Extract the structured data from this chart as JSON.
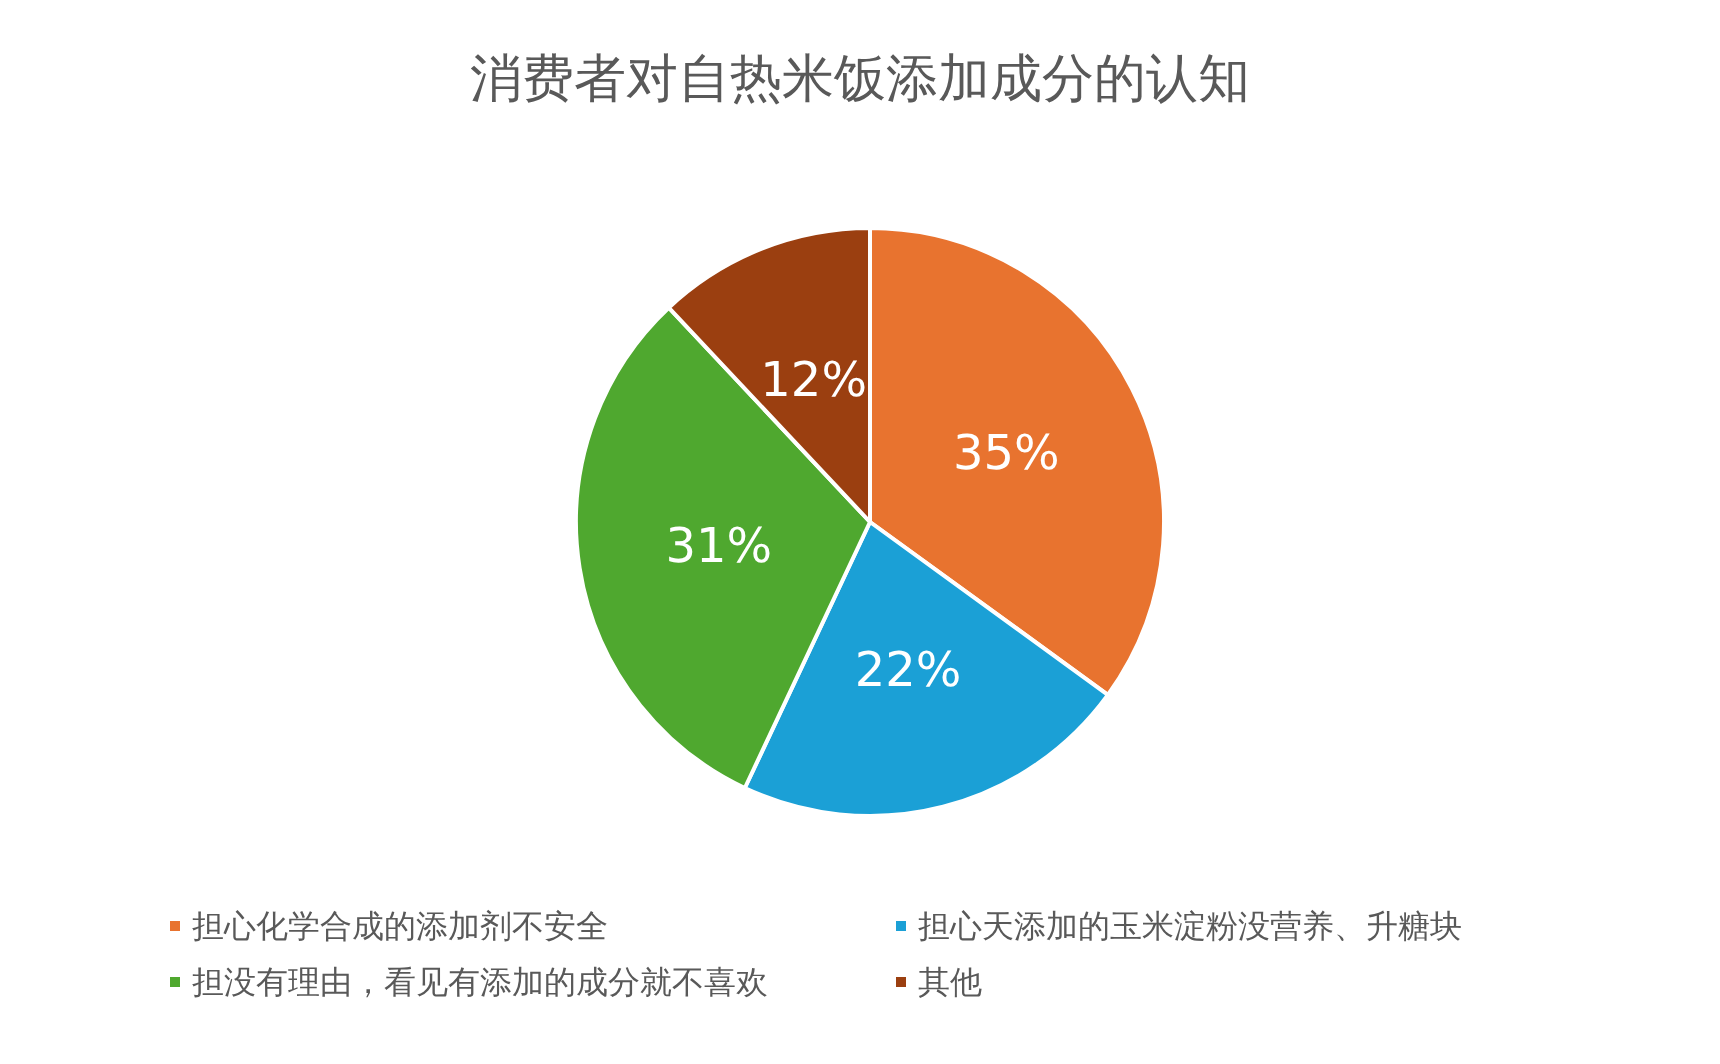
{
  "chart_data": {
    "type": "pie",
    "title": "消费者对自热米饭添加成分的认知",
    "categories": [
      "担心化学合成的添加剂不安全",
      "担心天添加的玉米淀粉没营养、升糖块",
      "担没有理由，看见有添加的成分就不喜欢",
      "其他"
    ],
    "values": [
      35,
      22,
      31,
      12
    ],
    "colors": [
      "#e8732f",
      "#1ba0d6",
      "#4fa82f",
      "#9b3f10"
    ],
    "value_labels": [
      "35%",
      "22%",
      "31%",
      "12%"
    ],
    "legend": "bottom"
  }
}
